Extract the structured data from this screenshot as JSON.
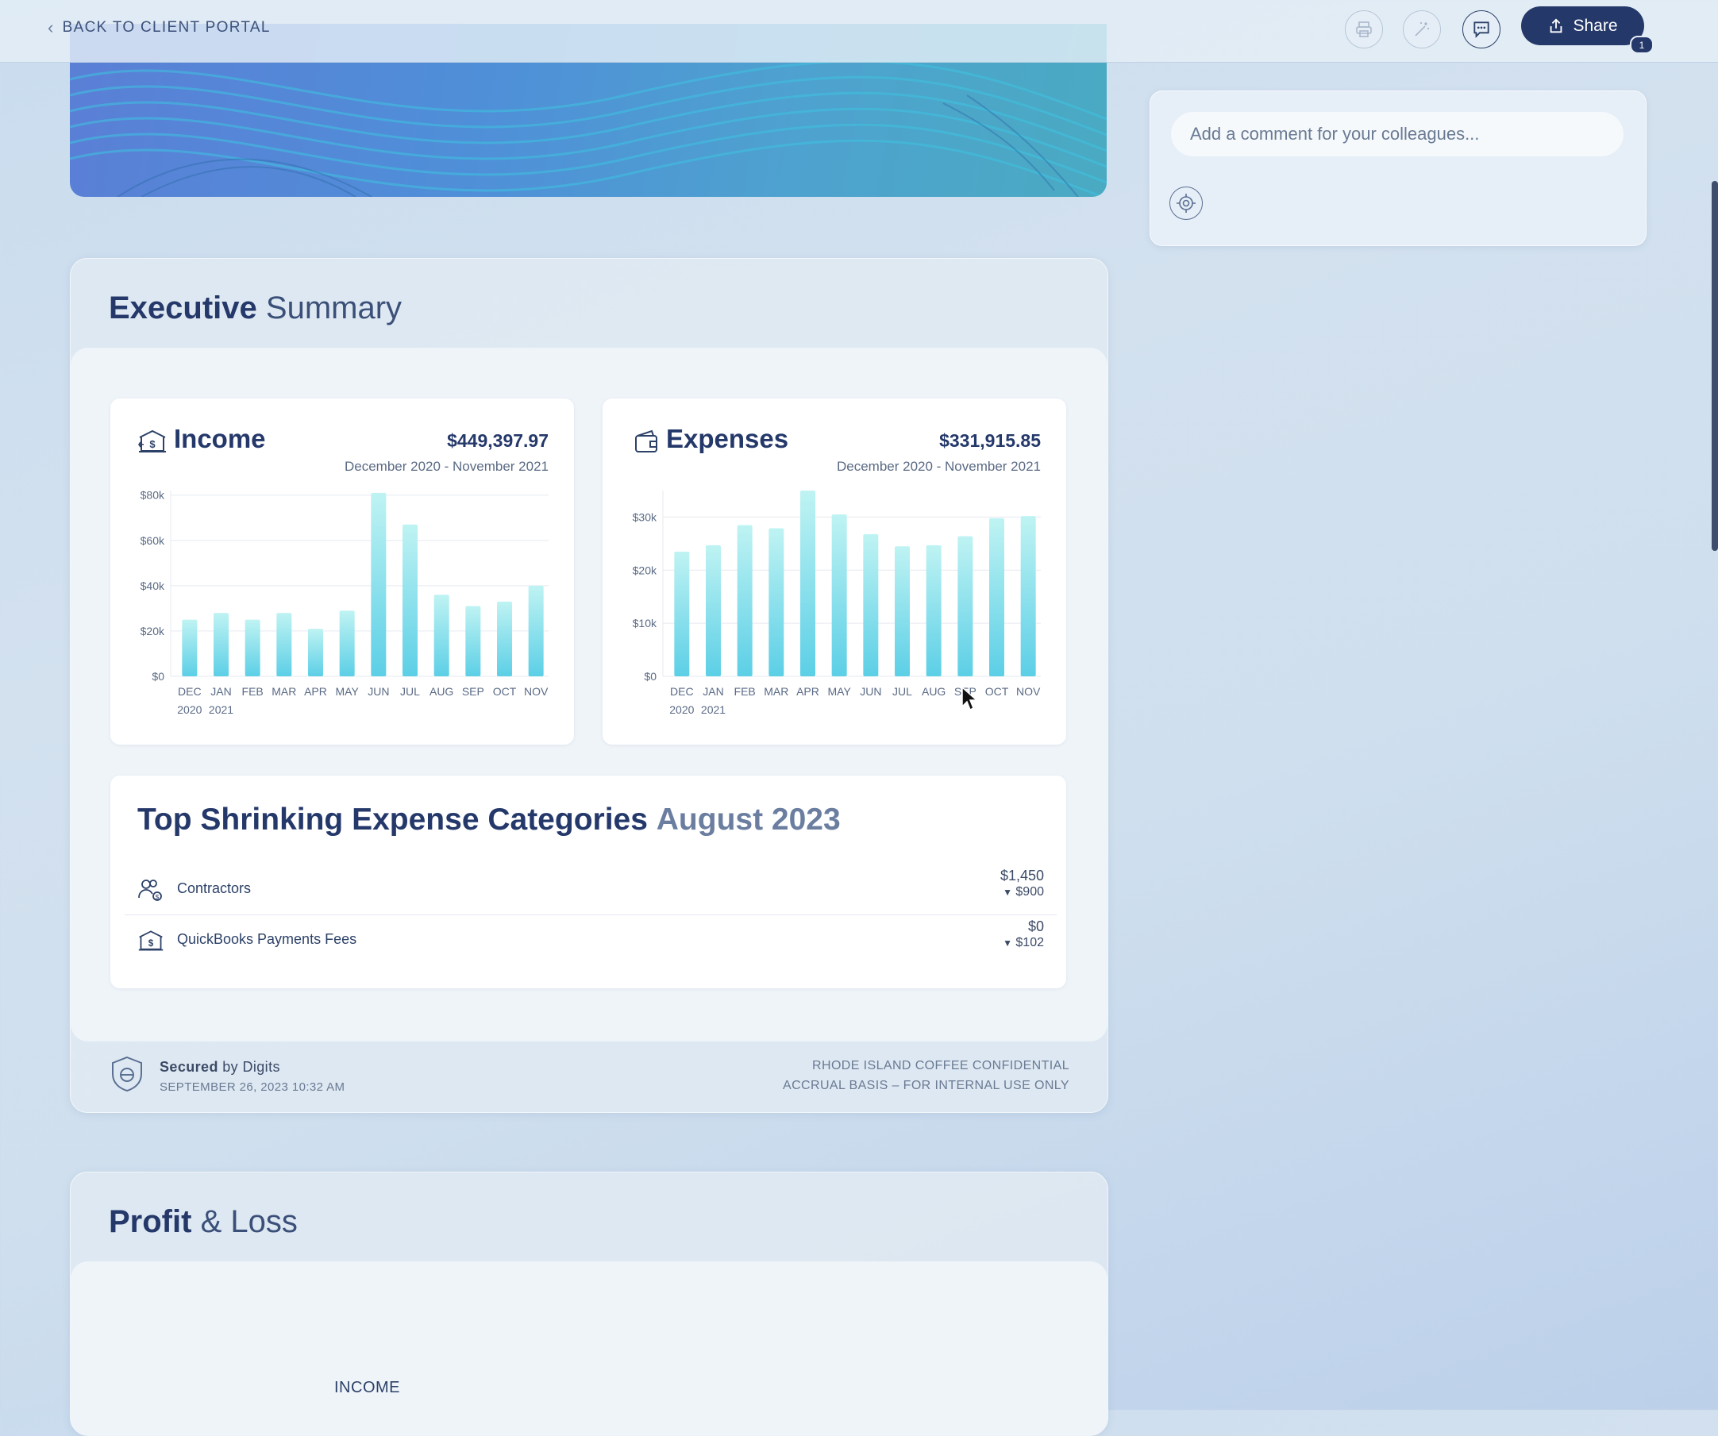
{
  "topbar": {
    "back_label": "BACK TO CLIENT PORTAL",
    "icons": [
      "printer-icon",
      "magic-wand-icon",
      "comment-icon"
    ],
    "share_label": "Share",
    "share_badge": "1"
  },
  "comments": {
    "placeholder": "Add a comment for your colleagues..."
  },
  "executive_summary": {
    "title_bold": "Executive",
    "title_light": "Summary",
    "income": {
      "title": "Income",
      "amount": "$449,397.97",
      "range": "December 2020 - November 2021"
    },
    "expenses": {
      "title": "Expenses",
      "amount": "$331,915.85",
      "range": "December 2020 - November 2021"
    },
    "shrinking": {
      "title_bold": "Top Shrinking Expense Categories",
      "title_light": "August 2023",
      "rows": [
        {
          "name": "Contractors",
          "value": "$1,450",
          "change": "$900"
        },
        {
          "name": "QuickBooks Payments Fees",
          "value": "$0",
          "change": "$102"
        }
      ]
    },
    "footer": {
      "secured_bold": "Secured",
      "secured_rest": " by Digits",
      "timestamp": "SEPTEMBER 26, 2023 10:32 AM",
      "confidential": "RHODE ISLAND COFFEE CONFIDENTIAL",
      "basis": "ACCRUAL BASIS – FOR INTERNAL USE ONLY"
    }
  },
  "profit_loss": {
    "title_bold": "Profit",
    "title_light": "& Loss",
    "section_label": "INCOME"
  },
  "chart_data": [
    {
      "type": "bar",
      "title": "Income",
      "categories": [
        "DEC",
        "JAN",
        "FEB",
        "MAR",
        "APR",
        "MAY",
        "JUN",
        "JUL",
        "AUG",
        "SEP",
        "OCT",
        "NOV"
      ],
      "year_labels": [
        "2020",
        "2021"
      ],
      "values": [
        25000,
        28000,
        25000,
        28000,
        21000,
        29000,
        81000,
        67000,
        36000,
        31000,
        33000,
        40000
      ],
      "yticks": [
        "$0",
        "$20k",
        "$40k",
        "$60k",
        "$80k"
      ],
      "ylim": [
        0,
        82000
      ],
      "grid": true,
      "color": "#5ccfe6"
    },
    {
      "type": "bar",
      "title": "Expenses",
      "categories": [
        "DEC",
        "JAN",
        "FEB",
        "MAR",
        "APR",
        "MAY",
        "JUN",
        "JUL",
        "AUG",
        "SEP",
        "OCT",
        "NOV"
      ],
      "year_labels": [
        "2020",
        "2021"
      ],
      "values": [
        23500,
        24700,
        28500,
        27900,
        35000,
        30500,
        26800,
        24500,
        24700,
        26400,
        29800,
        30200
      ],
      "yticks": [
        "$0",
        "$10k",
        "$20k",
        "$30k"
      ],
      "ylim": [
        0,
        35000
      ],
      "grid": true,
      "color": "#5ccfe6"
    }
  ]
}
